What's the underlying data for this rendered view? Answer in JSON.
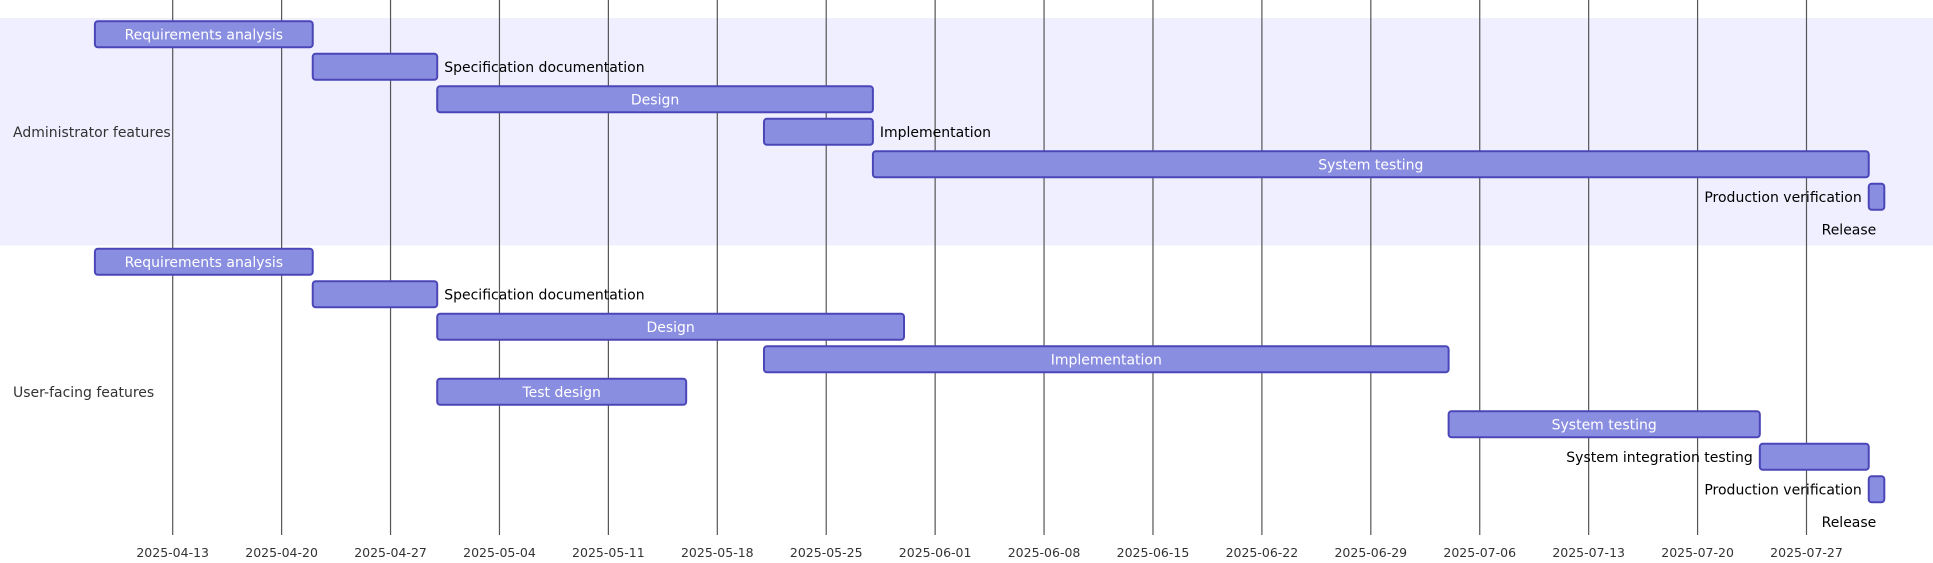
{
  "chart_data": {
    "type": "gantt",
    "date_range": [
      "2025-04-06",
      "2025-08-04"
    ],
    "axis_ticks": [
      "2025-04-13",
      "2025-04-20",
      "2025-04-27",
      "2025-05-04",
      "2025-05-11",
      "2025-05-18",
      "2025-05-25",
      "2025-06-01",
      "2025-06-08",
      "2025-06-15",
      "2025-06-22",
      "2025-06-29",
      "2025-07-06",
      "2025-07-13",
      "2025-07-20",
      "2025-07-27"
    ],
    "colors": {
      "bar_fill": "#8a8ee0",
      "bar_stroke": "#4b46b8",
      "section_band": "#efefff",
      "gridline": "#555555"
    },
    "sections": [
      {
        "name": "Administrator features",
        "tasks": [
          {
            "name": "Requirements analysis",
            "start": "2025-04-08",
            "end": "2025-04-22"
          },
          {
            "name": "Specification documentation",
            "start": "2025-04-22",
            "end": "2025-04-30"
          },
          {
            "name": "Design",
            "start": "2025-04-30",
            "end": "2025-05-28"
          },
          {
            "name": "Implementation",
            "start": "2025-05-21",
            "end": "2025-05-28"
          },
          {
            "name": "System testing",
            "start": "2025-05-28",
            "end": "2025-07-31"
          },
          {
            "name": "Production verification",
            "start": "2025-07-31",
            "end": "2025-08-01"
          },
          {
            "name": "Release",
            "start": "2025-08-01",
            "end": "2025-08-01",
            "milestone": true
          }
        ]
      },
      {
        "name": "User-facing features",
        "tasks": [
          {
            "name": "Requirements analysis",
            "start": "2025-04-08",
            "end": "2025-04-22"
          },
          {
            "name": "Specification documentation",
            "start": "2025-04-22",
            "end": "2025-04-30"
          },
          {
            "name": "Design",
            "start": "2025-04-30",
            "end": "2025-05-30"
          },
          {
            "name": "Implementation",
            "start": "2025-05-21",
            "end": "2025-07-04"
          },
          {
            "name": "Test design",
            "start": "2025-04-30",
            "end": "2025-05-16"
          },
          {
            "name": "System testing",
            "start": "2025-07-04",
            "end": "2025-07-24"
          },
          {
            "name": "System integration testing",
            "start": "2025-07-24",
            "end": "2025-07-31"
          },
          {
            "name": "Production verification",
            "start": "2025-07-31",
            "end": "2025-08-01"
          },
          {
            "name": "Release",
            "start": "2025-08-01",
            "end": "2025-08-01",
            "milestone": true
          }
        ]
      }
    ]
  }
}
